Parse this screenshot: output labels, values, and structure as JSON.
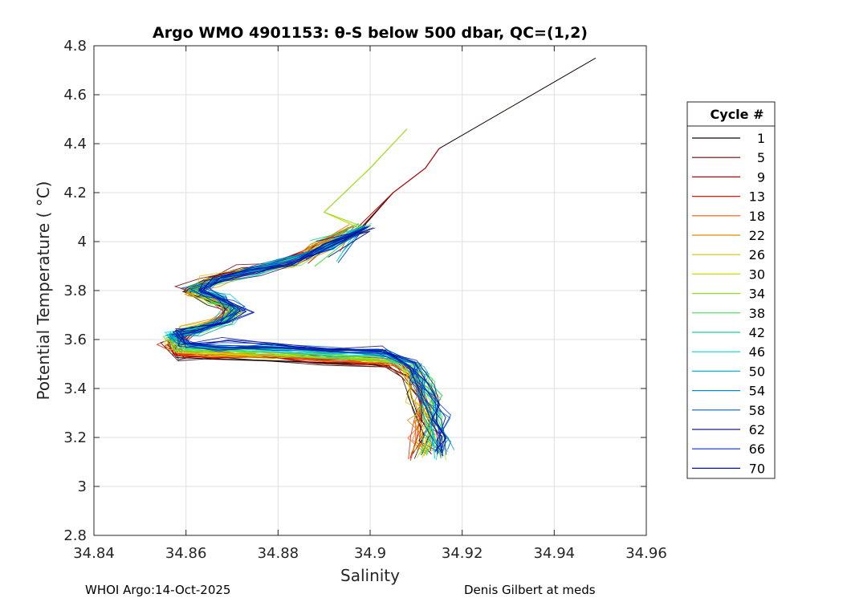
{
  "chart_data": {
    "type": "line",
    "title": "Argo WMO 4901153: θ-S below 500 dbar,  QC=(1,2)",
    "xlabel": "Salinity",
    "ylabel": "Potential Temperature ( °C)",
    "xlim": [
      34.84,
      34.96
    ],
    "ylim": [
      2.8,
      4.8
    ],
    "xticks": [
      34.84,
      34.86,
      34.88,
      34.9,
      34.92,
      34.94,
      34.96
    ],
    "xtick_labels": [
      "34.84",
      "34.86",
      "34.88",
      "34.9",
      "34.92",
      "34.94",
      "34.96"
    ],
    "yticks": [
      2.8,
      3,
      3.2,
      3.4,
      3.6,
      3.8,
      4,
      4.2,
      4.4,
      4.6,
      4.8
    ],
    "ytick_labels": [
      "2.8",
      "3",
      "3.2",
      "3.4",
      "3.6",
      "3.8",
      "4",
      "4.2",
      "4.4",
      "4.6",
      "4.8"
    ],
    "grid": true,
    "legend_title": "Cycle #",
    "legend_position": "outside-right",
    "series": [
      {
        "name": "1",
        "color": "#1a0000"
      },
      {
        "name": "5",
        "color": "#7a0000"
      },
      {
        "name": "9",
        "color": "#c40000"
      },
      {
        "name": "13",
        "color": "#e01800"
      },
      {
        "name": "18",
        "color": "#f25a00"
      },
      {
        "name": "22",
        "color": "#e08a00"
      },
      {
        "name": "26",
        "color": "#d8c000"
      },
      {
        "name": "30",
        "color": "#c8e000"
      },
      {
        "name": "34",
        "color": "#90e020"
      },
      {
        "name": "38",
        "color": "#40e040"
      },
      {
        "name": "42",
        "color": "#10d890"
      },
      {
        "name": "46",
        "color": "#00d8c8"
      },
      {
        "name": "50",
        "color": "#00b8e0"
      },
      {
        "name": "54",
        "color": "#0090c8"
      },
      {
        "name": "58",
        "color": "#0060c0"
      },
      {
        "name": "62",
        "color": "#1a1a8a"
      },
      {
        "name": "66",
        "color": "#0030d0"
      },
      {
        "name": "70",
        "color": "#0010a0"
      }
    ]
  },
  "footer": {
    "left": "WHOI Argo:14-Oct-2025",
    "right": "Denis Gilbert at meds"
  }
}
